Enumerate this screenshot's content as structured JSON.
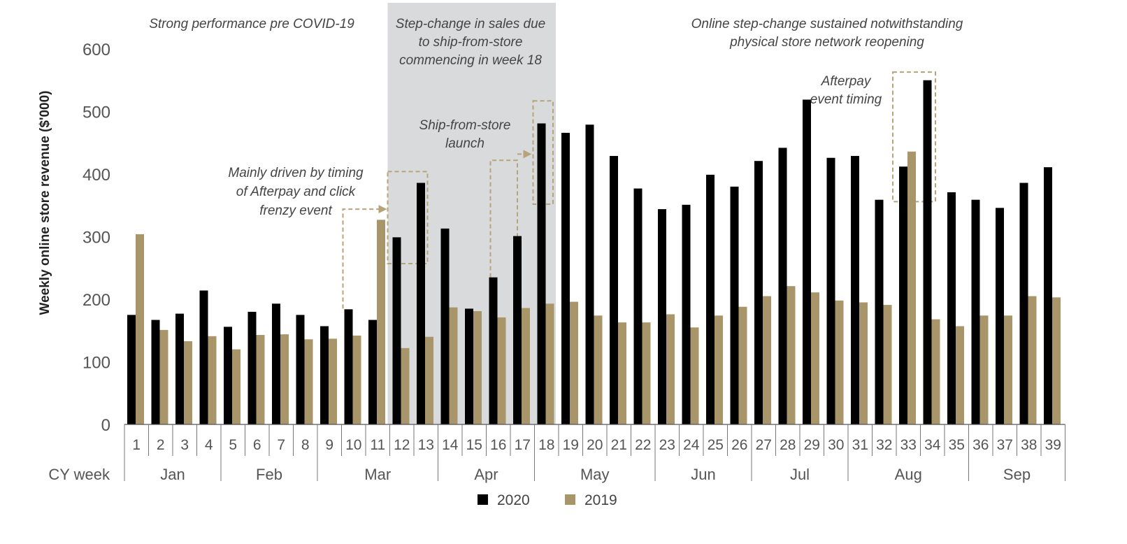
{
  "chart_data": {
    "type": "bar",
    "ylabel": "Weekly online store revenue ($'000)",
    "xlabel": "CY week",
    "ylim": [
      0,
      600
    ],
    "yticks": [
      0,
      100,
      200,
      300,
      400,
      500,
      600
    ],
    "grid": false,
    "legend_position": "bottom",
    "categories": [
      "1",
      "2",
      "3",
      "4",
      "5",
      "6",
      "7",
      "8",
      "9",
      "10",
      "11",
      "12",
      "13",
      "14",
      "15",
      "16",
      "17",
      "18",
      "19",
      "20",
      "21",
      "22",
      "23",
      "24",
      "25",
      "26",
      "27",
      "28",
      "29",
      "30",
      "31",
      "32",
      "33",
      "34",
      "35",
      "36",
      "37",
      "38",
      "39"
    ],
    "series": [
      {
        "name": "2020",
        "color": "#000000",
        "values": [
          175,
          167,
          177,
          214,
          156,
          180,
          193,
          175,
          157,
          184,
          167,
          299,
          386,
          313,
          185,
          235,
          301,
          481,
          466,
          479,
          429,
          377,
          344,
          351,
          399,
          380,
          421,
          442,
          519,
          426,
          429,
          359,
          412,
          550,
          371,
          359,
          346,
          386,
          411
        ]
      },
      {
        "name": "2019",
        "color": "#a8956a",
        "values": [
          304,
          151,
          133,
          141,
          120,
          143,
          144,
          136,
          137,
          142,
          327,
          122,
          140,
          187,
          181,
          171,
          186,
          193,
          196,
          174,
          163,
          163,
          176,
          155,
          174,
          188,
          205,
          221,
          211,
          198,
          195,
          191,
          436,
          168,
          157,
          174,
          174,
          205,
          203
        ]
      }
    ],
    "months": [
      {
        "name": "Jan",
        "start": 1,
        "end": 4
      },
      {
        "name": "Feb",
        "start": 5,
        "end": 8
      },
      {
        "name": "Mar",
        "start": 9,
        "end": 13
      },
      {
        "name": "Apr",
        "start": 14,
        "end": 17
      },
      {
        "name": "May",
        "start": 18,
        "end": 22
      },
      {
        "name": "Jun",
        "start": 23,
        "end": 26
      },
      {
        "name": "Jul",
        "start": 27,
        "end": 30
      },
      {
        "name": "Aug",
        "start": 31,
        "end": 35
      },
      {
        "name": "Sep",
        "start": 36,
        "end": 39
      }
    ],
    "shaded_period": {
      "start_week": 12,
      "end_week": 18,
      "color": "#d9dadc"
    },
    "annotations": {
      "pre_covid": [
        "Strong performance pre COVID-19"
      ],
      "step_change": [
        "Step-change in sales due",
        "to ship-from-store",
        "commencing in week 18"
      ],
      "sustained": [
        "Online step-change sustained notwithstanding",
        "physical store network reopening"
      ],
      "ship_from_store": [
        "Ship-from-store",
        "launch"
      ],
      "afterpay_timing": [
        "Afterpay",
        "event timing"
      ],
      "mainly_driven": [
        "Mainly driven by timing",
        "of Afterpay and click",
        "frenzy event"
      ]
    },
    "highlight_color": "#b5a47a"
  }
}
